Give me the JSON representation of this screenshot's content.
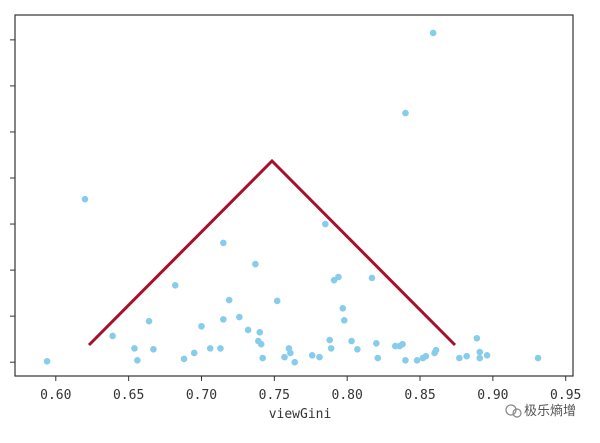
{
  "chart_data": {
    "type": "scatter",
    "x_label": "viewGini",
    "color": "#87cdeb",
    "x": [
      0.594,
      0.62,
      0.639,
      0.654,
      0.656,
      0.664,
      0.667,
      0.682,
      0.688,
      0.695,
      0.7,
      0.706,
      0.713,
      0.715,
      0.715,
      0.719,
      0.726,
      0.732,
      0.737,
      0.739,
      0.74,
      0.741,
      0.742,
      0.752,
      0.757,
      0.76,
      0.761,
      0.764,
      0.776,
      0.781,
      0.785,
      0.788,
      0.789,
      0.791,
      0.794,
      0.797,
      0.798,
      0.803,
      0.807,
      0.817,
      0.82,
      0.821,
      0.833,
      0.836,
      0.838,
      0.84,
      0.84,
      0.848,
      0.852,
      0.854,
      0.859,
      0.86,
      0.861,
      0.877,
      0.882,
      0.889,
      0.891,
      0.891,
      0.896,
      0.931
    ],
    "values": [
      0.02,
      3.54,
      0.57,
      0.3,
      0.04,
      0.89,
      0.28,
      1.67,
      0.07,
      0.2,
      0.78,
      0.3,
      0.3,
      0.93,
      2.59,
      1.35,
      0.98,
      0.7,
      2.13,
      0.46,
      0.65,
      0.39,
      0.09,
      1.33,
      0.11,
      0.3,
      0.2,
      0.0,
      0.15,
      0.11,
      3.0,
      0.48,
      0.3,
      1.78,
      1.85,
      1.17,
      0.91,
      0.46,
      0.28,
      1.83,
      0.41,
      0.09,
      0.35,
      0.35,
      0.39,
      5.41,
      0.04,
      0.04,
      0.09,
      0.13,
      7.15,
      0.2,
      0.26,
      0.09,
      0.13,
      0.52,
      0.22,
      0.09,
      0.15,
      0.09
    ],
    "xlim": [
      0.572,
      0.955
    ],
    "ylim": [
      -0.3,
      7.54
    ],
    "xticks": [
      {
        "value": 0.6,
        "label": "0.60"
      },
      0.65,
      {
        "value": 0.7,
        "label": "0.70"
      },
      0.75,
      {
        "value": 0.8,
        "label": "0.80"
      },
      0.85,
      {
        "value": 0.9,
        "label": "0.90"
      },
      0.95
    ],
    "yticks": [
      0,
      1,
      2,
      3,
      4,
      5,
      6,
      7
    ]
  },
  "watermark": "极乐熵增"
}
